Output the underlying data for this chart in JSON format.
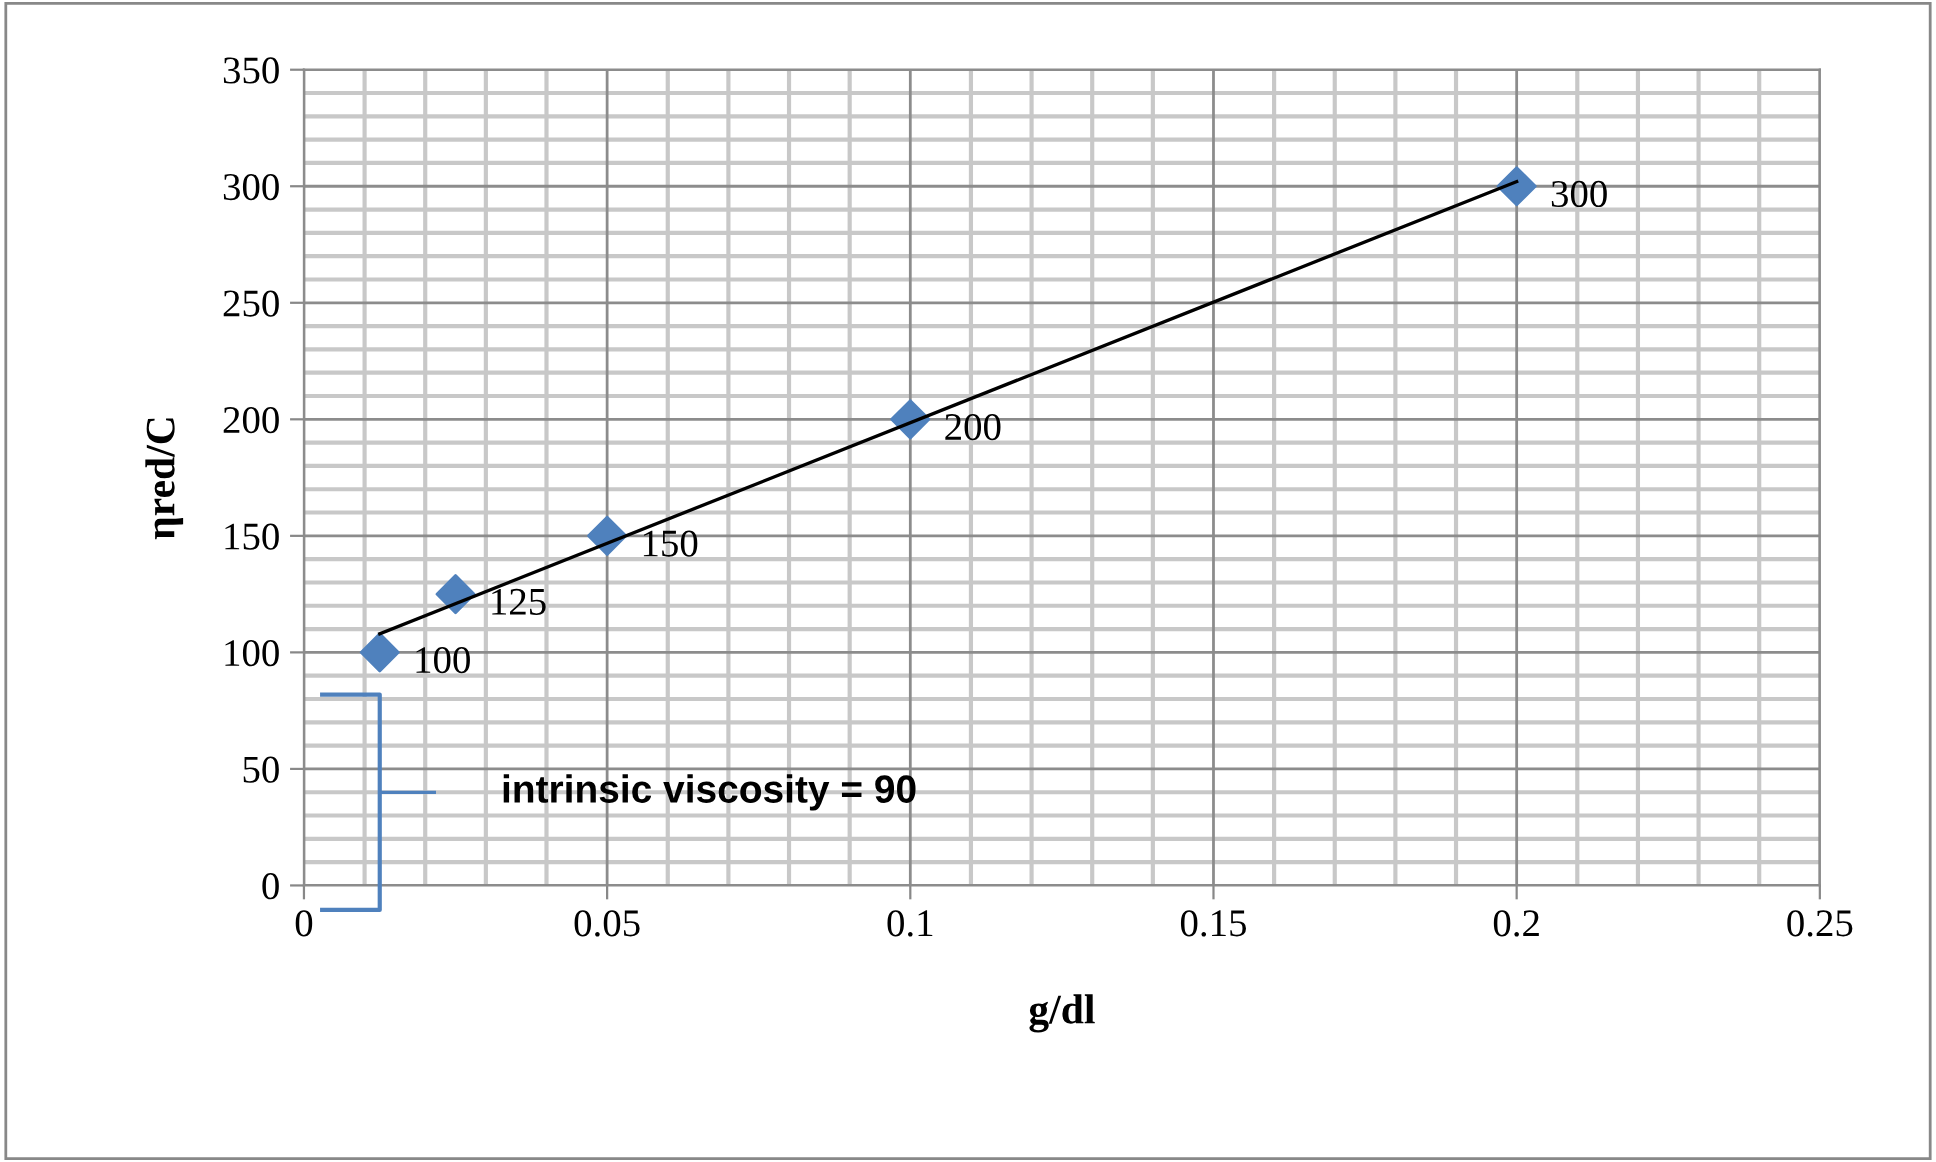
{
  "chart_data": {
    "type": "scatter",
    "xlabel": "g/dl",
    "ylabel": "ηred/C",
    "series": [
      {
        "color": "#4f81bd",
        "x": [
          0.0125,
          0.025,
          0.05,
          0.1,
          0.2
        ],
        "values": [
          100,
          125,
          150,
          200,
          300
        ],
        "value_labels": [
          "100",
          "125",
          "150",
          "200",
          "300"
        ],
        "marker": "diamond"
      },
      {
        "type": "line",
        "color": "#000000",
        "x": [
          0.0125,
          0.2
        ],
        "values": [
          108,
          302
        ],
        "marker": "none",
        "line_style": "solid"
      }
    ],
    "annotations": [
      "intrinsic viscosity = 90"
    ],
    "xlim": [
      0,
      0.25
    ],
    "xticks": [
      0,
      0.05,
      0.1,
      0.15,
      0.2,
      0.25
    ],
    "ylim": [
      0,
      350
    ],
    "yticks": [
      0,
      50,
      100,
      150,
      200,
      250,
      300,
      350
    ],
    "grid": true,
    "legend": false
  }
}
